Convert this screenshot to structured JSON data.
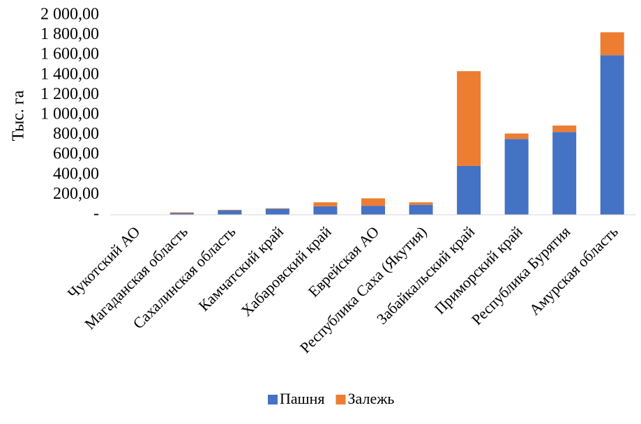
{
  "chart_data": {
    "type": "bar",
    "stacked": true,
    "ylabel": "Тыс. га",
    "xlabel": "",
    "ylim": [
      0,
      2000
    ],
    "ytick_labels": [
      "-",
      "200,00",
      "400,00",
      "600,00",
      "800,00",
      "1 000,00",
      "1 200,00",
      "1 400,00",
      "1 600,00",
      "1 800,00",
      "2 000,00"
    ],
    "categories": [
      "Чукотский АО",
      "Магаданская область",
      "Сахалинская область",
      "Камчатский край",
      "Хабаровский край",
      "Еврейская АО",
      "Республика Саха (Якутия)",
      "Забайкальский край",
      "Приморский край",
      "Республика Бурятия",
      "Амурская область"
    ],
    "series": [
      {
        "name": "Пашня",
        "color": "#4472C4",
        "values": [
          1,
          17,
          45,
          60,
          85,
          90,
          100,
          490,
          760,
          830,
          1600
        ]
      },
      {
        "name": "Залежь",
        "color": "#ED7D31",
        "values": [
          0,
          8,
          5,
          5,
          40,
          75,
          25,
          950,
          55,
          65,
          230
        ]
      }
    ],
    "grid": false,
    "legend": "bottom"
  }
}
